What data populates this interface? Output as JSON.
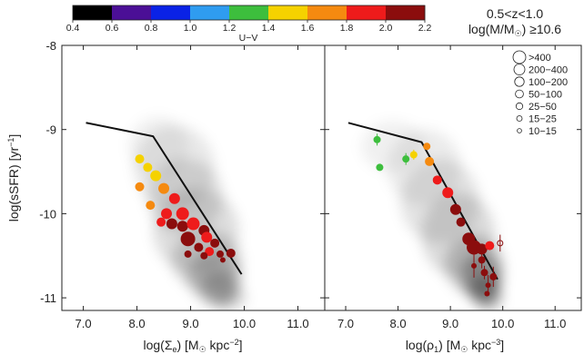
{
  "chart_data": [
    {
      "type": "scatter",
      "panel": "left",
      "xlabel_parts": [
        "log(Σ",
        "e",
        ") [M",
        "☉",
        " kpc",
        "−2",
        "]"
      ],
      "ylabel_parts": [
        "log(sSFR) [yr",
        "−1",
        "]"
      ],
      "xlim": [
        6.6,
        11.5
      ],
      "ylim": [
        -11.15,
        -8.0
      ],
      "xticks": [
        "7.0",
        "8.0",
        "9.0",
        "10.0",
        "11.0"
      ],
      "xtick_values": [
        7.0,
        8.0,
        9.0,
        10.0,
        11.0
      ],
      "yticks": [
        "-8",
        "-9",
        "-10",
        "-11"
      ],
      "ytick_values": [
        -8,
        -9,
        -10,
        -11
      ],
      "model_line": {
        "x": [
          7.05,
          8.3,
          9.95
        ],
        "y": [
          -8.92,
          -9.08,
          -10.72
        ]
      },
      "density_blobs": [
        {
          "x": 8.7,
          "y": -9.45,
          "rx": 0.75,
          "ry": 0.5,
          "a": 0.09
        },
        {
          "x": 8.9,
          "y": -9.8,
          "rx": 0.7,
          "ry": 0.45,
          "a": 0.12
        },
        {
          "x": 9.1,
          "y": -10.2,
          "rx": 0.8,
          "ry": 0.5,
          "a": 0.13
        },
        {
          "x": 9.3,
          "y": -10.55,
          "rx": 0.65,
          "ry": 0.35,
          "a": 0.16
        },
        {
          "x": 9.45,
          "y": -10.75,
          "rx": 0.5,
          "ry": 0.3,
          "a": 0.2
        },
        {
          "x": 9.55,
          "y": -10.9,
          "rx": 0.35,
          "ry": 0.22,
          "a": 0.22
        },
        {
          "x": 8.4,
          "y": -9.2,
          "rx": 0.55,
          "ry": 0.35,
          "a": 0.06
        },
        {
          "x": 9.75,
          "y": -11.0,
          "rx": 0.3,
          "ry": 0.15,
          "a": 0.12
        }
      ],
      "points": [
        {
          "x": 8.05,
          "y": -9.35,
          "uv": 1.55,
          "size": 5
        },
        {
          "x": 8.2,
          "y": -9.45,
          "uv": 1.45,
          "size": 5
        },
        {
          "x": 8.35,
          "y": -9.55,
          "uv": 1.5,
          "size": 6
        },
        {
          "x": 8.05,
          "y": -9.68,
          "uv": 1.72,
          "size": 5
        },
        {
          "x": 8.5,
          "y": -9.7,
          "uv": 1.6,
          "size": 6
        },
        {
          "x": 8.7,
          "y": -9.82,
          "uv": 1.8,
          "size": 6
        },
        {
          "x": 8.25,
          "y": -9.9,
          "uv": 1.75,
          "size": 5
        },
        {
          "x": 8.55,
          "y": -10.0,
          "uv": 1.9,
          "size": 6
        },
        {
          "x": 8.85,
          "y": -10.0,
          "uv": 1.8,
          "size": 7
        },
        {
          "x": 8.45,
          "y": -10.1,
          "uv": 1.95,
          "size": 5
        },
        {
          "x": 8.65,
          "y": -10.12,
          "uv": 2.0,
          "size": 6
        },
        {
          "x": 8.85,
          "y": -10.15,
          "uv": 2.0,
          "size": 6
        },
        {
          "x": 9.05,
          "y": -10.12,
          "uv": 1.95,
          "size": 7
        },
        {
          "x": 9.25,
          "y": -10.2,
          "uv": 2.0,
          "size": 6
        },
        {
          "x": 8.95,
          "y": -10.3,
          "uv": 2.0,
          "size": 8
        },
        {
          "x": 9.3,
          "y": -10.28,
          "uv": 1.95,
          "size": 6
        },
        {
          "x": 9.15,
          "y": -10.4,
          "uv": 2.05,
          "size": 5
        },
        {
          "x": 9.45,
          "y": -10.35,
          "uv": 2.0,
          "size": 5
        },
        {
          "x": 9.35,
          "y": -10.45,
          "uv": 1.95,
          "size": 5
        },
        {
          "x": 8.95,
          "y": -10.48,
          "uv": 2.1,
          "size": 4
        },
        {
          "x": 9.25,
          "y": -10.5,
          "uv": 2.1,
          "size": 4
        },
        {
          "x": 9.55,
          "y": -10.48,
          "uv": 2.05,
          "size": 4
        },
        {
          "x": 9.75,
          "y": -10.47,
          "uv": 2.0,
          "size": 5
        },
        {
          "x": 9.6,
          "y": -10.55,
          "uv": 2.1,
          "size": 3
        }
      ]
    },
    {
      "type": "scatter",
      "panel": "right",
      "xlabel_parts": [
        "log(ρ",
        "1",
        ") [M",
        "☉",
        " kpc",
        "−3",
        "]"
      ],
      "xlim": [
        6.6,
        11.5
      ],
      "ylim": [
        -11.15,
        -8.0
      ],
      "xticks": [
        "7.0",
        "8.0",
        "9.0",
        "10.0",
        "11.0"
      ],
      "xtick_values": [
        7.0,
        8.0,
        9.0,
        10.0,
        11.0
      ],
      "yticks": [
        "-8",
        "-9",
        "-10",
        "-11"
      ],
      "ytick_values": [
        -8,
        -9,
        -10,
        -11
      ],
      "model_line": {
        "x": [
          7.05,
          8.45,
          9.9
        ],
        "y": [
          -8.92,
          -9.15,
          -10.78
        ]
      },
      "density_blobs": [
        {
          "x": 8.5,
          "y": -9.45,
          "rx": 0.7,
          "ry": 0.45,
          "a": 0.08
        },
        {
          "x": 8.8,
          "y": -9.85,
          "rx": 0.75,
          "ry": 0.5,
          "a": 0.11
        },
        {
          "x": 9.15,
          "y": -10.25,
          "rx": 0.7,
          "ry": 0.5,
          "a": 0.14
        },
        {
          "x": 9.45,
          "y": -10.6,
          "rx": 0.55,
          "ry": 0.35,
          "a": 0.2
        },
        {
          "x": 9.6,
          "y": -10.75,
          "rx": 0.4,
          "ry": 0.28,
          "a": 0.28
        },
        {
          "x": 9.65,
          "y": -10.9,
          "rx": 0.3,
          "ry": 0.2,
          "a": 0.3
        },
        {
          "x": 7.9,
          "y": -9.2,
          "rx": 0.6,
          "ry": 0.3,
          "a": 0.06
        },
        {
          "x": 9.75,
          "y": -11.02,
          "rx": 0.25,
          "ry": 0.14,
          "a": 0.18
        }
      ],
      "points": [
        {
          "x": 7.6,
          "y": -9.12,
          "uv": 1.35,
          "size": 4,
          "err": 0.07
        },
        {
          "x": 7.65,
          "y": -9.45,
          "uv": 1.3,
          "size": 4
        },
        {
          "x": 8.15,
          "y": -9.35,
          "uv": 1.35,
          "size": 4,
          "err": 0.07
        },
        {
          "x": 8.3,
          "y": -9.3,
          "uv": 1.4,
          "size": 4,
          "err": 0.06
        },
        {
          "x": 8.55,
          "y": -9.2,
          "uv": 1.75,
          "size": 4
        },
        {
          "x": 8.6,
          "y": -9.38,
          "uv": 1.6,
          "size": 5
        },
        {
          "x": 8.75,
          "y": -9.6,
          "uv": 1.85,
          "size": 5
        },
        {
          "x": 8.95,
          "y": -9.75,
          "uv": 1.9,
          "size": 6
        },
        {
          "x": 9.1,
          "y": -9.95,
          "uv": 2.0,
          "size": 6
        },
        {
          "x": 9.2,
          "y": -10.1,
          "uv": 2.0,
          "size": 5
        },
        {
          "x": 9.35,
          "y": -10.3,
          "uv": 2.0,
          "size": 7
        },
        {
          "x": 9.45,
          "y": -10.4,
          "uv": 2.0,
          "size": 8
        },
        {
          "x": 9.6,
          "y": -10.42,
          "uv": 2.05,
          "size": 6
        },
        {
          "x": 9.75,
          "y": -10.38,
          "uv": 1.95,
          "size": 5
        },
        {
          "x": 9.45,
          "y": -10.62,
          "uv": 2.1,
          "size": 3,
          "err": 0.14
        },
        {
          "x": 9.6,
          "y": -10.55,
          "uv": 2.1,
          "size": 4,
          "err": 0.1
        },
        {
          "x": 9.65,
          "y": -10.7,
          "uv": 2.1,
          "size": 4,
          "err": 0.08
        },
        {
          "x": 9.72,
          "y": -10.85,
          "uv": 2.15,
          "size": 3,
          "err": 0.12
        },
        {
          "x": 9.82,
          "y": -10.75,
          "uv": 2.0,
          "size": 4,
          "err": 0.12
        },
        {
          "x": 9.7,
          "y": -10.95,
          "uv": 2.1,
          "size": 3
        },
        {
          "x": 9.95,
          "y": -10.35,
          "uv": 2.05,
          "size": 3,
          "err": 0.1,
          "open": true
        }
      ]
    }
  ],
  "colorbar": {
    "label": "U−V",
    "ticks": [
      "0.4",
      "0.6",
      "0.8",
      "1.0",
      "1.2",
      "1.4",
      "1.6",
      "1.8",
      "2.0",
      "2.2"
    ],
    "bins": [
      {
        "from": 0.4,
        "to": 0.6,
        "color": "#000000"
      },
      {
        "from": 0.6,
        "to": 0.8,
        "color": "#4b0f96"
      },
      {
        "from": 0.8,
        "to": 1.0,
        "color": "#0a22e6"
      },
      {
        "from": 1.0,
        "to": 1.2,
        "color": "#2f9cf0"
      },
      {
        "from": 1.2,
        "to": 1.4,
        "color": "#3dbe3d"
      },
      {
        "from": 1.4,
        "to": 1.6,
        "color": "#f5d200"
      },
      {
        "from": 1.6,
        "to": 1.8,
        "color": "#f58a10"
      },
      {
        "from": 1.8,
        "to": 2.0,
        "color": "#ee1b1b"
      },
      {
        "from": 2.0,
        "to": 2.2,
        "color": "#8b0d0d"
      }
    ]
  },
  "annotation": {
    "line1": "0.5<z<1.0",
    "line2_parts": [
      "log(M/M",
      "☉",
      ") ≥10.6"
    ]
  },
  "legend": {
    "placement": "top-right",
    "items": [
      {
        "label": ">400",
        "size": 7
      },
      {
        "label": "200−400",
        "size": 6
      },
      {
        "label": "100−200",
        "size": 5.2
      },
      {
        "label": "50−100",
        "size": 4.4
      },
      {
        "label": "25−50",
        "size": 3.7
      },
      {
        "label": "15−25",
        "size": 3
      },
      {
        "label": "10−15",
        "size": 2.4
      }
    ]
  }
}
